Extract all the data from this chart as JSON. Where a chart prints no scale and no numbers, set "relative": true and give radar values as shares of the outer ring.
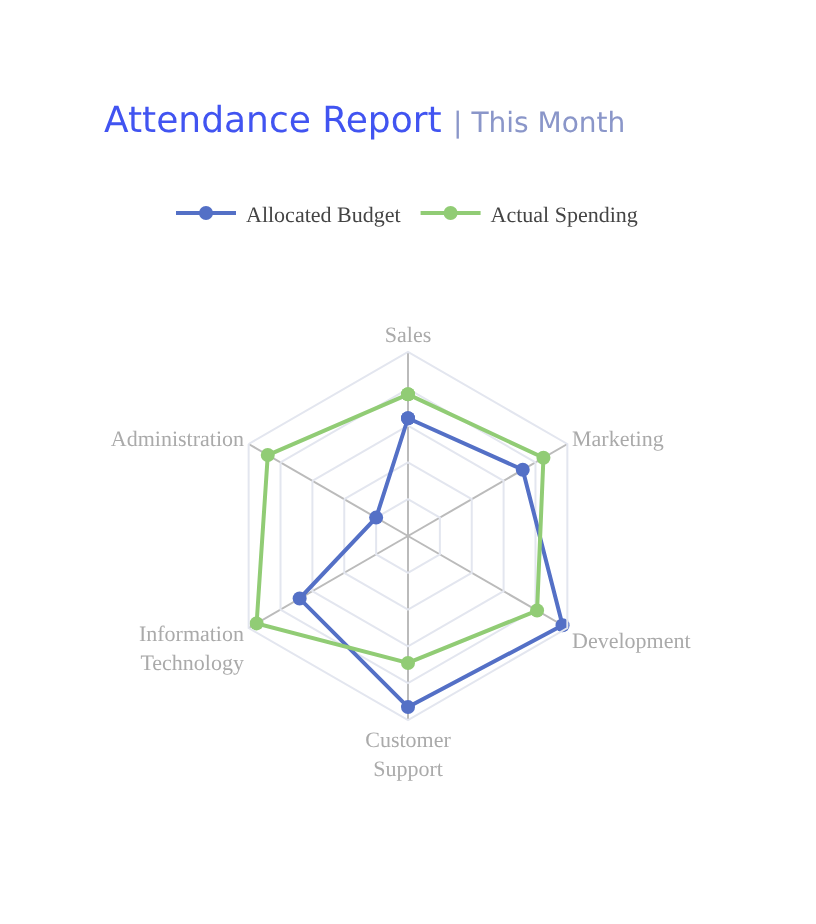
{
  "chart_data": {
    "type": "radar",
    "title": "Attendance Report",
    "subtitle": "| This Month",
    "relative": true,
    "grid": true,
    "legend": "top",
    "marker": "circle",
    "line_style": "solid",
    "categories": [
      "Sales",
      "Marketing",
      "Development",
      "Customer Support",
      "Information Technology",
      "Administration"
    ],
    "series": [
      {
        "name": "Allocated Budget",
        "color": "#5470c6",
        "values": [
          0.64,
          0.72,
          0.97,
          0.93,
          0.68,
          0.2
        ]
      },
      {
        "name": "Actual Spending",
        "color": "#91cc75",
        "values": [
          0.77,
          0.85,
          0.81,
          0.69,
          0.95,
          0.88
        ]
      }
    ]
  }
}
